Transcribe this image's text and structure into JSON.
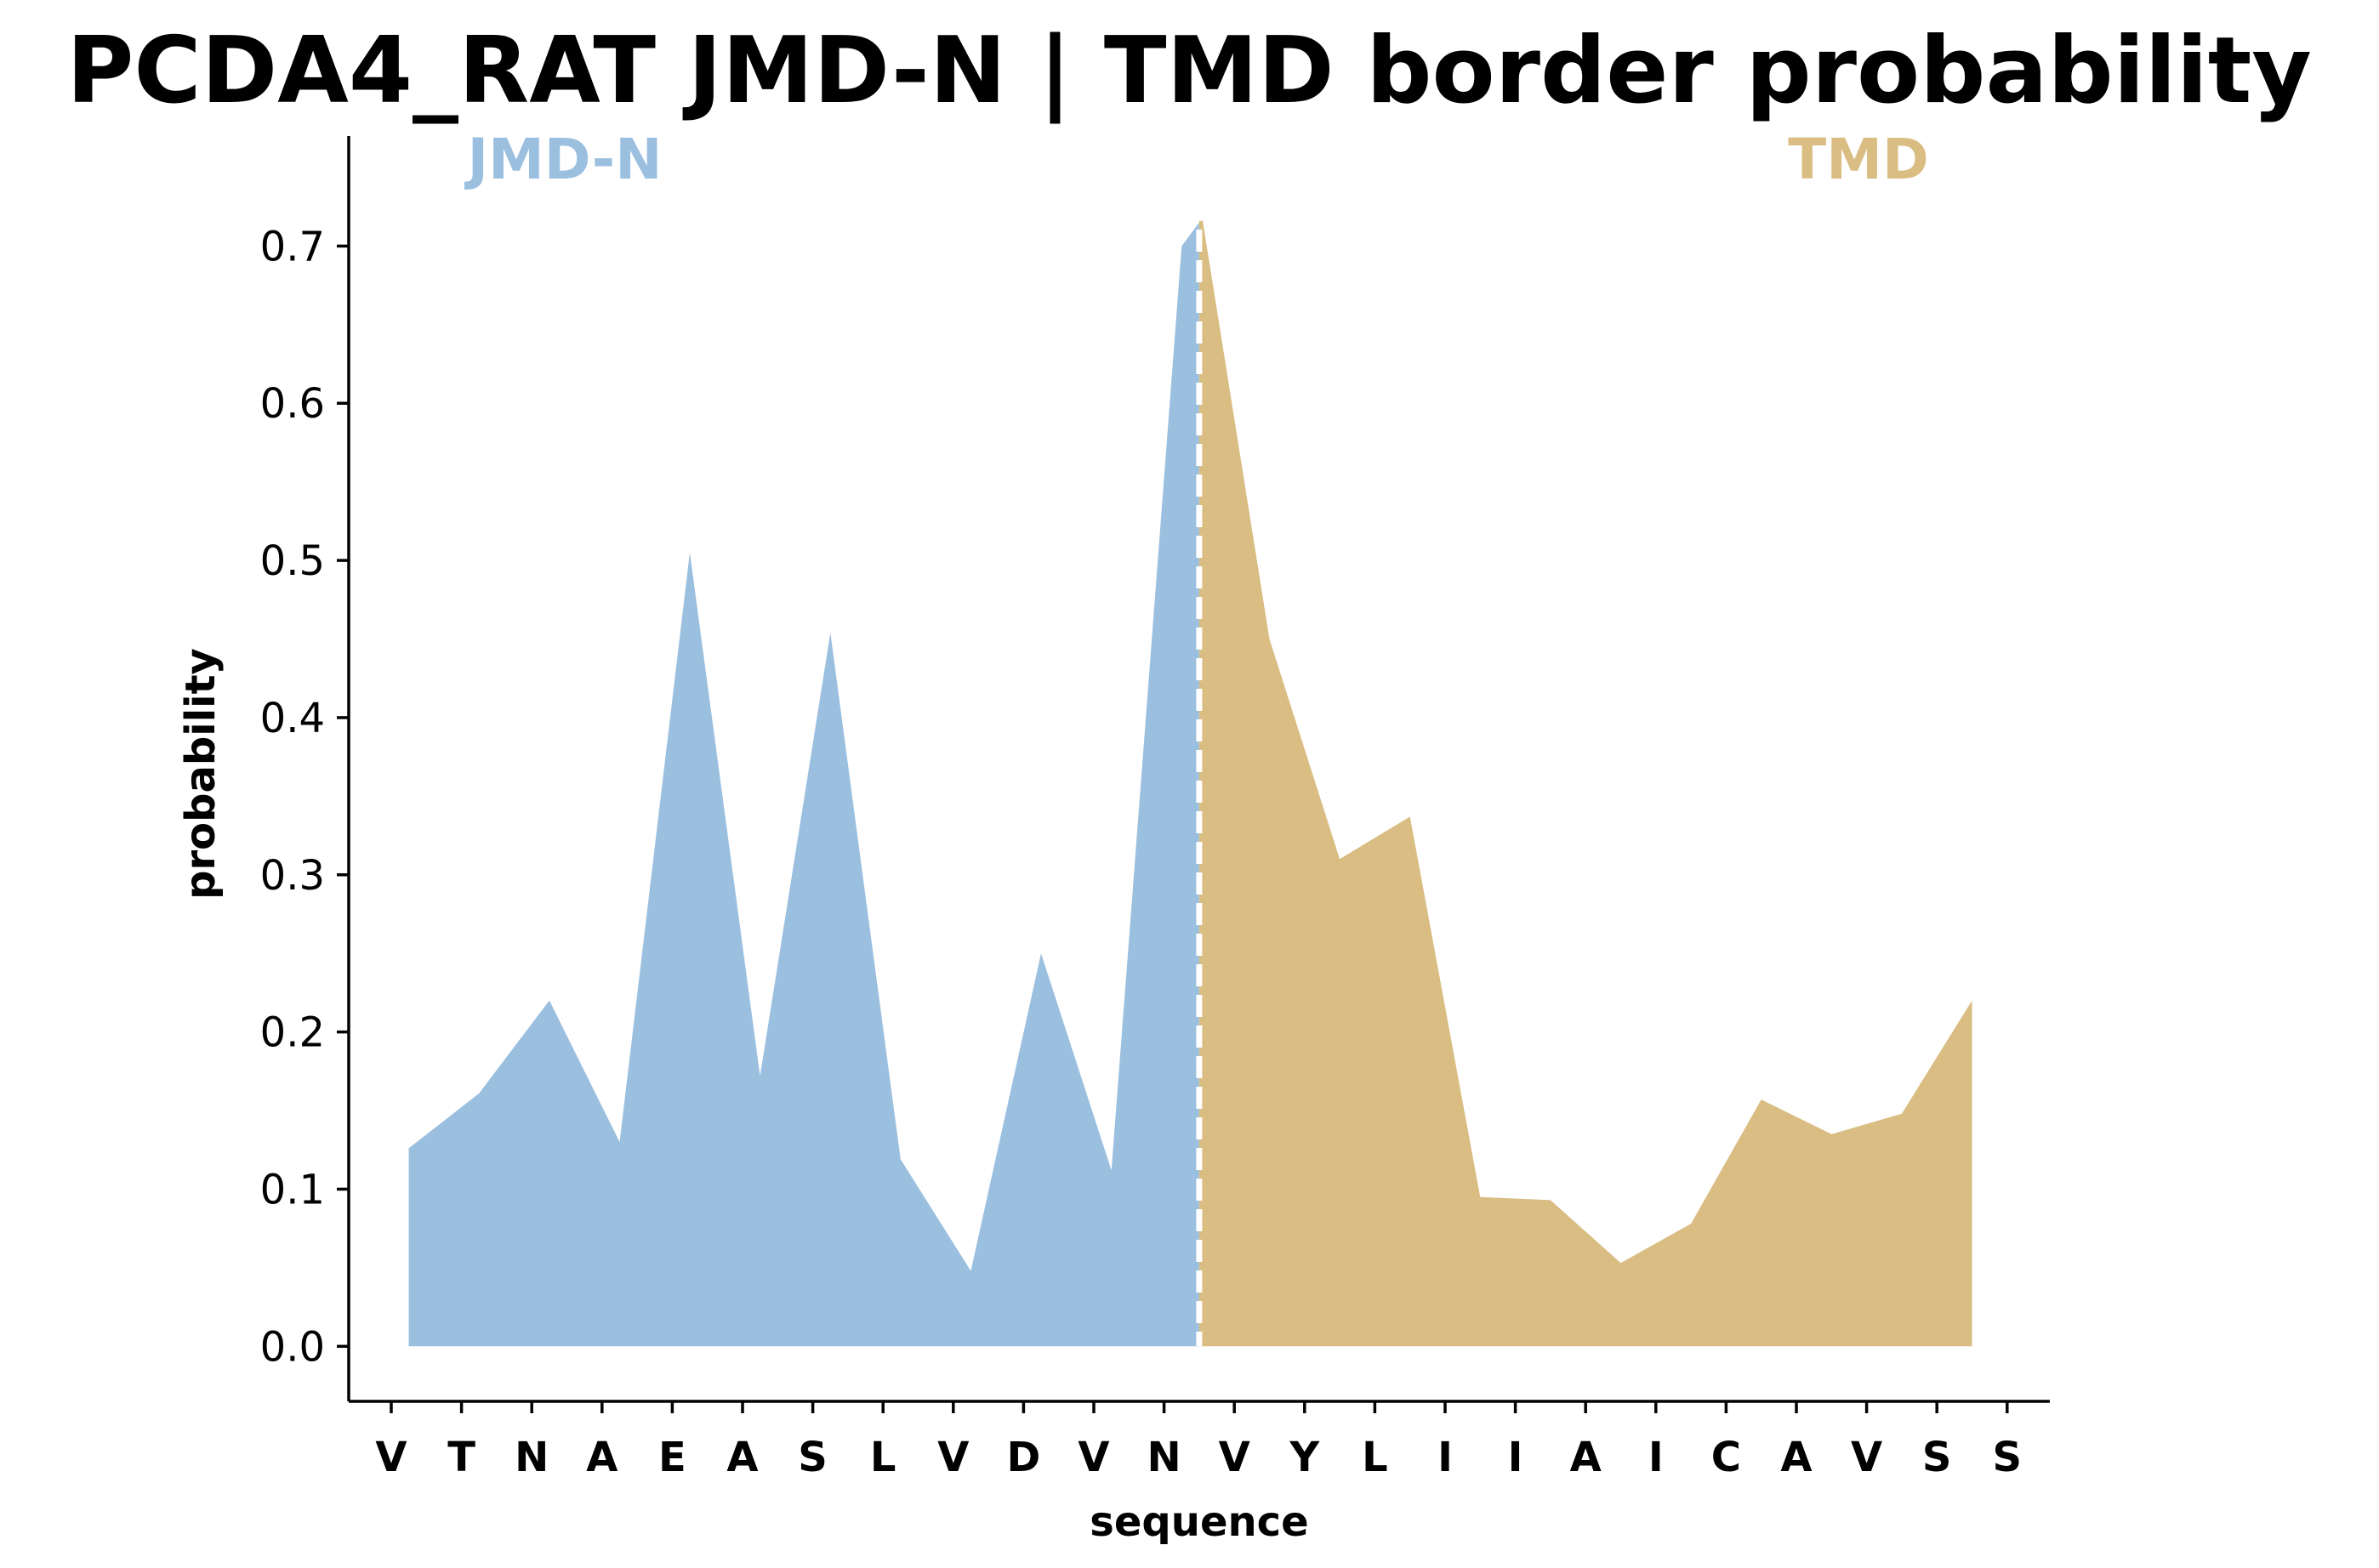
{
  "chart_data": {
    "type": "area",
    "title": "PCDA4_RAT JMD-N | TMD border probability",
    "xlabel": "sequence",
    "ylabel": "probability",
    "ylim": [
      -0.035,
      0.77
    ],
    "yticks": [
      "0.0",
      "0.1",
      "0.2",
      "0.3",
      "0.4",
      "0.5",
      "0.6",
      "0.7"
    ],
    "grid": false,
    "categories": [
      "V",
      "T",
      "N",
      "A",
      "E",
      "A",
      "S",
      "L",
      "V",
      "D",
      "V",
      "N",
      "V",
      "Y",
      "L",
      "I",
      "I",
      "A",
      "I",
      "C",
      "A",
      "V",
      "S",
      "S"
    ],
    "region_labels": {
      "jmd": "JMD-N",
      "tmd": "TMD"
    },
    "border_x": 11.5,
    "series": [
      {
        "name": "JMD-N",
        "color": "#9bbfdf",
        "x": [
          0.25,
          1.25,
          2.25,
          3.25,
          4.25,
          5.25,
          6.25,
          7.25,
          8.25,
          9.25,
          10.25,
          11.25,
          11.5
        ],
        "values": [
          0.126,
          0.161,
          0.22,
          0.13,
          0.505,
          0.172,
          0.454,
          0.119,
          0.048,
          0.25,
          0.112,
          0.7,
          0.715
        ]
      },
      {
        "name": "TMD",
        "color": "#d9bd82",
        "x": [
          11.5,
          12.5,
          13.5,
          14.5,
          15.5,
          16.5,
          17.5,
          18.5,
          19.5,
          20.5,
          21.5,
          22.5
        ],
        "values": [
          0.73,
          0.45,
          0.31,
          0.337,
          0.095,
          0.093,
          0.053,
          0.078,
          0.157,
          0.135,
          0.148,
          0.22
        ]
      }
    ]
  }
}
